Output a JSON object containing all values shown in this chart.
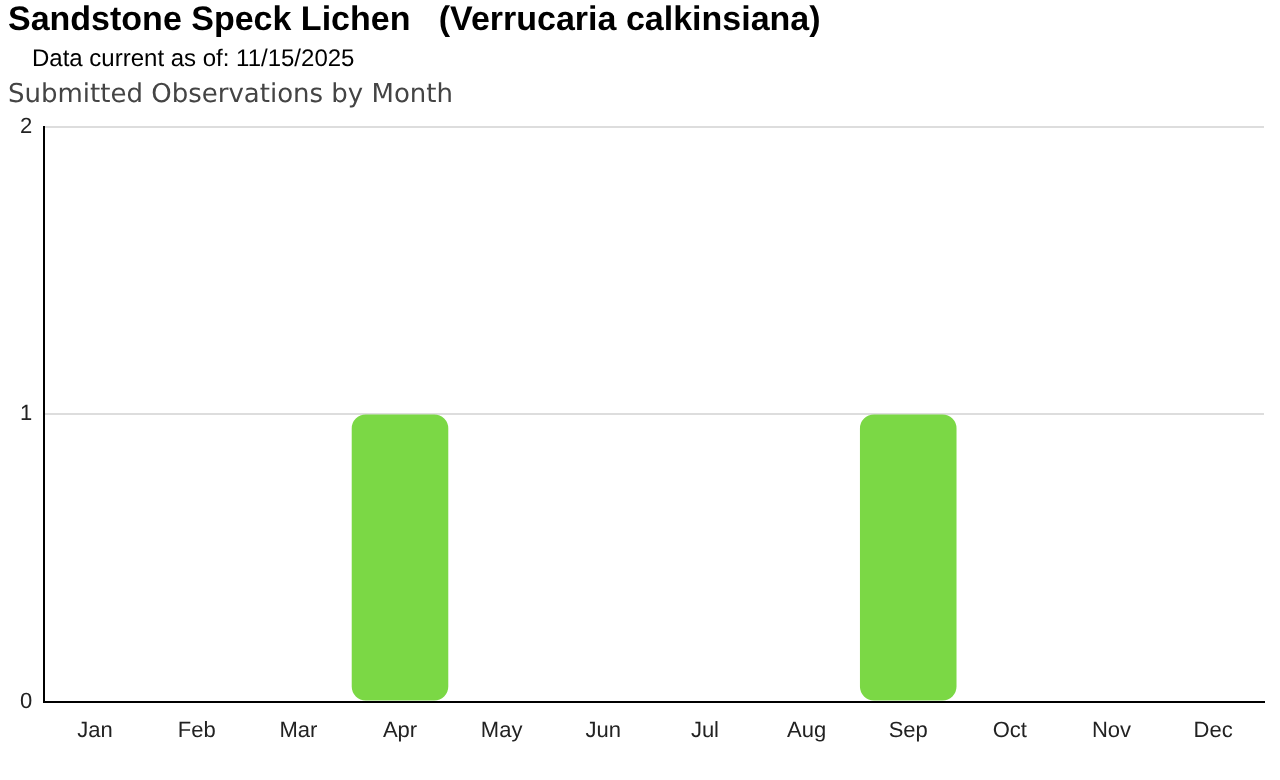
{
  "chart_data": {
    "type": "bar",
    "title": "Sandstone Speck Lichen   (Verrucaria calkinsiana)",
    "subtitle": "Data current as of: 11/15/2025",
    "annotations": [
      "Submitted Observations by Month"
    ],
    "categories": [
      "Jan",
      "Feb",
      "Mar",
      "Apr",
      "May",
      "Jun",
      "Jul",
      "Aug",
      "Sep",
      "Oct",
      "Nov",
      "Dec"
    ],
    "values": [
      0,
      0,
      0,
      1,
      0,
      0,
      0,
      0,
      1,
      0,
      0,
      0
    ],
    "color": "#7bd845",
    "ylim": [
      0,
      2
    ],
    "yticks": [
      0,
      1,
      2
    ],
    "grid": "y",
    "legend": false
  }
}
